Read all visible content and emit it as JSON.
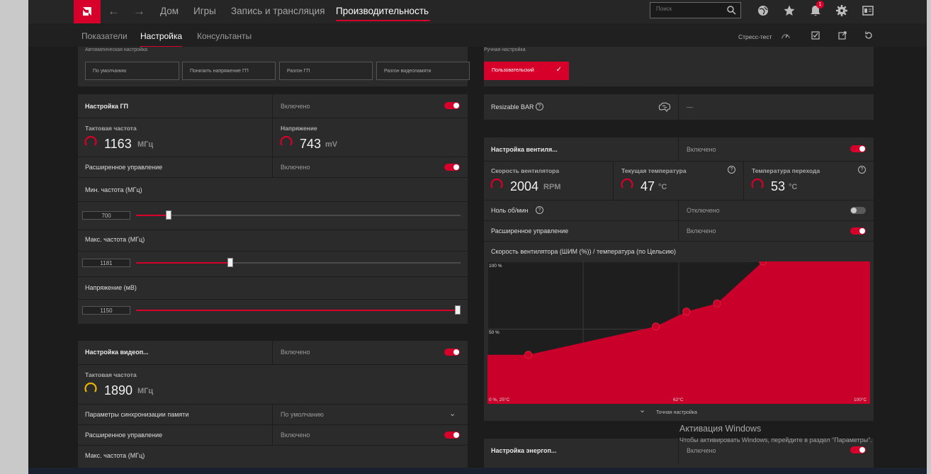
{
  "topnav": {
    "items": [
      "Дом",
      "Игры",
      "Запись и трансляция",
      "Производительность"
    ],
    "active": "Производительность",
    "search_placeholder": "Поиск",
    "notification_count": "1"
  },
  "subnav": {
    "items": [
      "Показатели",
      "Настройка",
      "Консультанты"
    ],
    "active": "Настройка",
    "stress_test": "Стресс-тест"
  },
  "auto_tuning": {
    "label": "Автоматическая настройка",
    "buttons": [
      "По умолчанию",
      "Понизить напряжение ГП",
      "Разгон ГП",
      "Разгон видеопамяти"
    ]
  },
  "manual_tuning": {
    "label": "Ручная настройка",
    "button": "Пользовательский"
  },
  "gpu_tuning": {
    "title": "Настройка ГП",
    "state": "Включено",
    "clock_label": "Тактовая частота",
    "clock_value": "1163",
    "clock_unit": "МГц",
    "voltage_label": "Напряжение",
    "voltage_value": "743",
    "voltage_unit": "mV",
    "advanced_label": "Расширенное управление",
    "advanced_state": "Включено",
    "min_freq_label": "Мин. частота (МГц)",
    "min_freq_value": "700",
    "min_freq_fraction": 0.1,
    "max_freq_label": "Макс. частота (МГц)",
    "max_freq_value": "1181",
    "max_freq_fraction": 0.29,
    "voltage_mv_label": "Напряжение (мВ)",
    "voltage_mv_value": "1150",
    "voltage_mv_fraction": 1.0
  },
  "vram_tuning": {
    "title": "Настройка видеоп...",
    "state": "Включено",
    "clock_label": "Тактовая частота",
    "clock_value": "1890",
    "clock_unit": "МГц",
    "timing_label": "Параметры синхронизации памяти",
    "timing_value": "По умолчанию",
    "advanced_label": "Расширенное управление",
    "advanced_state": "Включено",
    "max_freq_label": "Макс. частота (МГц)"
  },
  "rebar": {
    "label": "Resizable BAR",
    "value": "—"
  },
  "fan_tuning": {
    "title": "Настройка вентиля...",
    "state": "Включено",
    "fan_speed_label": "Скорость вентилятора",
    "fan_speed_value": "2004",
    "fan_speed_unit": "RPM",
    "temp_label": "Текущая температура",
    "temp_value": "47",
    "temp_unit": "°C",
    "junction_label": "Температура перехода",
    "junction_value": "53",
    "junction_unit": "°C",
    "zero_rpm_label": "Ноль об/мин",
    "zero_rpm_state": "Отключено",
    "advanced_label": "Расширенное управление",
    "advanced_state": "Включено",
    "curve_title": "Скорость вентилятора (ШИМ (%)) / температура (по Цельсию)",
    "fine_tune": "Точная настройка"
  },
  "chart_data": {
    "type": "area",
    "title": "Скорость вентилятора (ШИМ (%)) / температура (по Цельсию)",
    "x_tick_labels": [
      "0 %, 25°C",
      "62°C",
      "100°C"
    ],
    "y_tick_labels": [
      "100 %",
      "50 %"
    ],
    "xlim": [
      25,
      100
    ],
    "ylim": [
      0,
      100
    ],
    "x": [
      25,
      33,
      58,
      64,
      70,
      79,
      100
    ],
    "values": [
      31,
      31,
      52,
      63,
      69,
      100,
      100
    ],
    "points_x": [
      33,
      58,
      64,
      70,
      79
    ],
    "points_y": [
      31,
      52,
      63,
      69,
      100
    ],
    "grid": true,
    "color": "#c8002a"
  },
  "power_tuning": {
    "title": "Настройка энергоп...",
    "state": "Включено"
  },
  "watermark": {
    "line1": "Активация Windows",
    "line2": "Чтобы активировать Windows, перейдите в раздел \"Параметры\"."
  },
  "colors": {
    "accent": "#d7002a",
    "panel": "#2b2b2b",
    "background": "#1c1c1c"
  }
}
